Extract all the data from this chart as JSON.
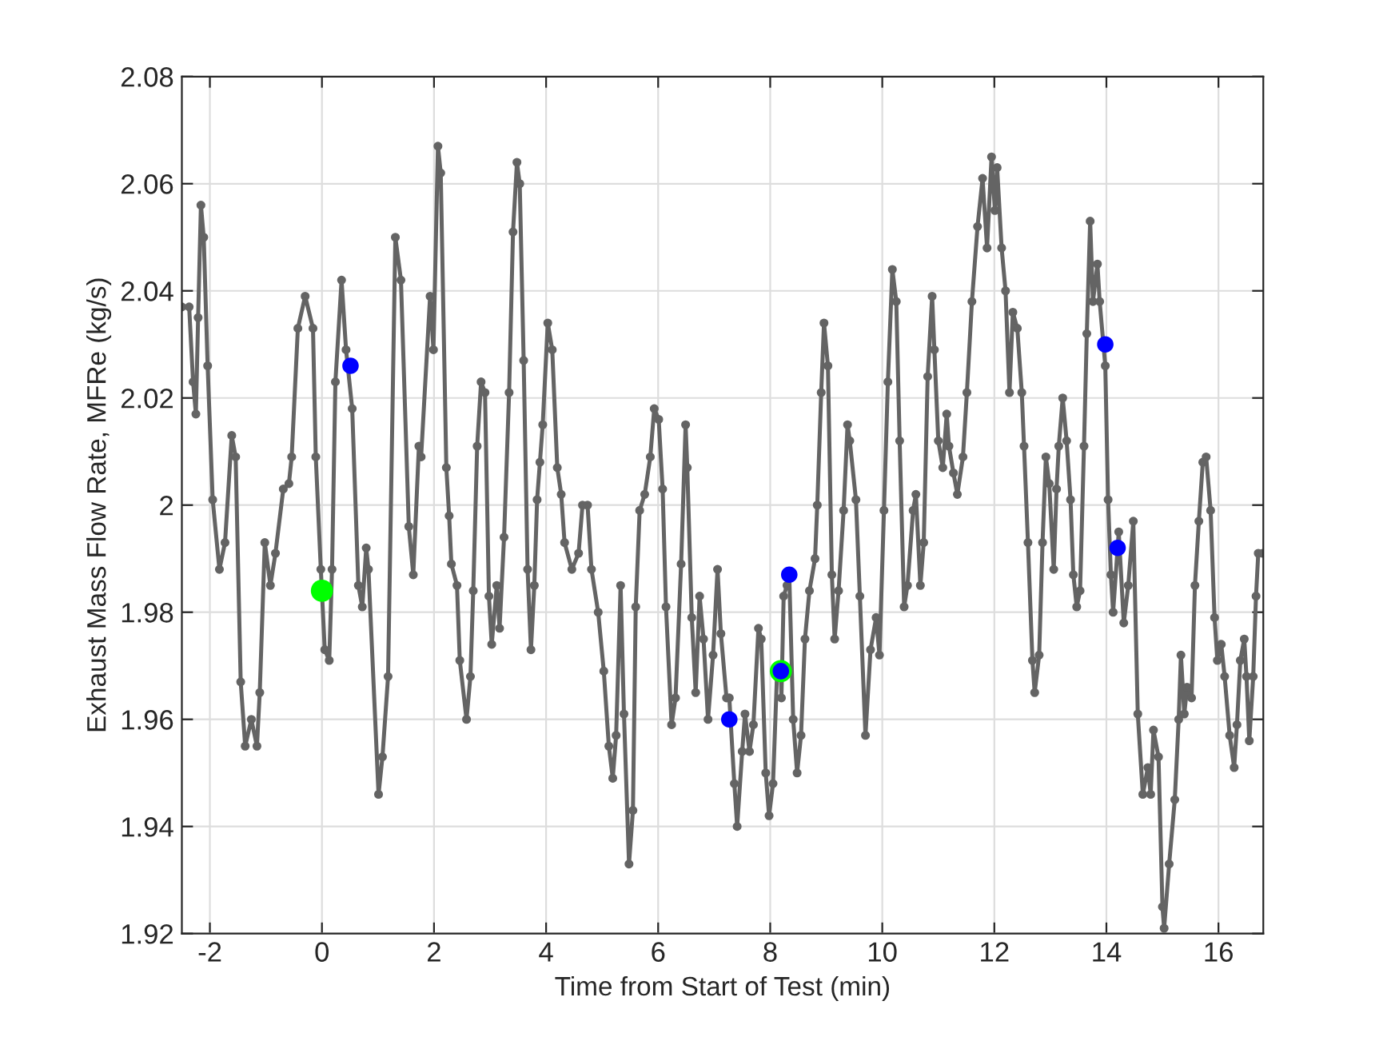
{
  "chart_data": {
    "type": "line",
    "xlabel": "Time from Start of Test (min)",
    "ylabel": "Exhaust Mass Flow Rate, MFRe (kg/s)",
    "xlim": [
      -2.5,
      16.8
    ],
    "ylim": [
      1.92,
      2.08
    ],
    "xticks": [
      -2,
      0,
      2,
      4,
      6,
      8,
      10,
      12,
      14,
      16
    ],
    "yticks": [
      1.92,
      1.94,
      1.96,
      1.98,
      2,
      2.02,
      2.04,
      2.06,
      2.08
    ],
    "grid": true,
    "legend": false,
    "series": [
      {
        "color": "#646464",
        "marker": "circle",
        "line_style": "solid",
        "x": [
          -2.5,
          -2.37,
          -2.3,
          -2.25,
          -2.21,
          -2.16,
          -2.11,
          -2.04,
          -1.95,
          -1.83,
          -1.73,
          -1.61,
          -1.54,
          -1.45,
          -1.37,
          -1.26,
          -1.16,
          -1.11,
          -1.02,
          -0.92,
          -0.83,
          -0.69,
          -0.59,
          -0.54,
          -0.43,
          -0.3,
          -0.16,
          -0.11,
          -0.02,
          0.05,
          0.13,
          0.18,
          0.24,
          0.35,
          0.43,
          0.54,
          0.65,
          0.72,
          0.79,
          0.83,
          1.01,
          1.08,
          1.18,
          1.31,
          1.41,
          1.55,
          1.63,
          1.73,
          1.77,
          1.93,
          1.99,
          2.07,
          2.12,
          2.22,
          2.27,
          2.31,
          2.41,
          2.46,
          2.58,
          2.65,
          2.7,
          2.77,
          2.84,
          2.91,
          2.98,
          3.03,
          3.12,
          3.17,
          3.25,
          3.34,
          3.41,
          3.48,
          3.53,
          3.6,
          3.67,
          3.73,
          3.79,
          3.84,
          3.89,
          3.94,
          4.03,
          4.11,
          4.2,
          4.27,
          4.33,
          4.46,
          4.58,
          4.65,
          4.74,
          4.81,
          4.93,
          5.03,
          5.12,
          5.19,
          5.25,
          5.33,
          5.39,
          5.48,
          5.55,
          5.6,
          5.67,
          5.76,
          5.86,
          5.93,
          6.01,
          6.08,
          6.14,
          6.24,
          6.31,
          6.41,
          6.49,
          6.52,
          6.6,
          6.67,
          6.74,
          6.81,
          6.89,
          6.98,
          7.06,
          7.12,
          7.22,
          7.27,
          7.36,
          7.41,
          7.5,
          7.55,
          7.63,
          7.7,
          7.79,
          7.84,
          7.92,
          7.98,
          8.05,
          8.12,
          8.19,
          8.2,
          8.24,
          8.3,
          8.34,
          8.41,
          8.48,
          8.55,
          8.62,
          8.7,
          8.8,
          8.84,
          8.91,
          8.96,
          9.03,
          9.1,
          9.15,
          9.22,
          9.31,
          9.38,
          9.42,
          9.53,
          9.6,
          9.7,
          9.79,
          9.89,
          9.95,
          10.03,
          10.1,
          10.18,
          10.25,
          10.31,
          10.39,
          10.45,
          10.55,
          10.6,
          10.68,
          10.74,
          10.81,
          10.89,
          10.93,
          11.0,
          11.08,
          11.15,
          11.19,
          11.27,
          11.34,
          11.44,
          11.51,
          11.6,
          11.7,
          11.79,
          11.87,
          11.95,
          12.01,
          12.05,
          12.13,
          12.2,
          12.27,
          12.33,
          12.41,
          12.49,
          12.53,
          12.6,
          12.68,
          12.72,
          12.8,
          12.86,
          12.92,
          12.98,
          13.06,
          13.11,
          13.15,
          13.22,
          13.29,
          13.36,
          13.41,
          13.47,
          13.53,
          13.6,
          13.65,
          13.71,
          13.76,
          13.84,
          13.88,
          13.98,
          14.03,
          14.08,
          14.12,
          14.2,
          14.22,
          14.31,
          14.39,
          14.48,
          14.56,
          14.65,
          14.74,
          14.79,
          14.84,
          14.93,
          15.0,
          15.03,
          15.12,
          15.22,
          15.29,
          15.33,
          15.39,
          15.44,
          15.52,
          15.58,
          15.65,
          15.72,
          15.78,
          15.86,
          15.93,
          15.98,
          16.05,
          16.11,
          16.2,
          16.28,
          16.33,
          16.39,
          16.46,
          16.5,
          16.55,
          16.62,
          16.67,
          16.71,
          16.79
        ],
        "values": [
          2.037,
          2.037,
          2.023,
          2.017,
          2.035,
          2.056,
          2.05,
          2.026,
          2.001,
          1.988,
          1.993,
          2.013,
          2.009,
          1.967,
          1.955,
          1.96,
          1.955,
          1.965,
          1.993,
          1.985,
          1.991,
          2.003,
          2.004,
          2.009,
          2.033,
          2.039,
          2.033,
          2.009,
          1.988,
          1.973,
          1.971,
          1.988,
          2.023,
          2.042,
          2.029,
          2.018,
          1.985,
          1.981,
          1.992,
          1.988,
          1.946,
          1.953,
          1.968,
          2.05,
          2.042,
          1.996,
          1.987,
          2.011,
          2.009,
          2.039,
          2.029,
          2.067,
          2.062,
          2.007,
          1.998,
          1.989,
          1.985,
          1.971,
          1.96,
          1.968,
          1.984,
          2.011,
          2.023,
          2.021,
          1.983,
          1.974,
          1.985,
          1.977,
          1.994,
          2.021,
          2.051,
          2.064,
          2.06,
          2.027,
          1.988,
          1.973,
          1.985,
          2.001,
          2.008,
          2.015,
          2.034,
          2.029,
          2.007,
          2.002,
          1.993,
          1.988,
          1.991,
          2.0,
          2.0,
          1.988,
          1.98,
          1.969,
          1.955,
          1.949,
          1.957,
          1.985,
          1.961,
          1.933,
          1.943,
          1.981,
          1.999,
          2.002,
          2.009,
          2.018,
          2.016,
          2.003,
          1.981,
          1.959,
          1.964,
          1.989,
          2.015,
          2.007,
          1.979,
          1.965,
          1.983,
          1.975,
          1.96,
          1.972,
          1.988,
          1.976,
          1.964,
          1.964,
          1.948,
          1.94,
          1.954,
          1.961,
          1.954,
          1.959,
          1.977,
          1.975,
          1.95,
          1.942,
          1.948,
          1.968,
          1.969,
          1.964,
          1.983,
          1.985,
          1.987,
          1.96,
          1.95,
          1.957,
          1.975,
          1.984,
          1.99,
          2.0,
          2.021,
          2.034,
          2.026,
          1.987,
          1.975,
          1.984,
          1.999,
          2.015,
          2.012,
          2.001,
          1.983,
          1.957,
          1.973,
          1.979,
          1.972,
          1.999,
          2.023,
          2.044,
          2.038,
          2.012,
          1.981,
          1.985,
          1.999,
          2.002,
          1.985,
          1.993,
          2.024,
          2.039,
          2.029,
          2.012,
          2.007,
          2.017,
          2.011,
          2.006,
          2.002,
          2.009,
          2.021,
          2.038,
          2.052,
          2.061,
          2.048,
          2.065,
          2.055,
          2.063,
          2.048,
          2.04,
          2.021,
          2.036,
          2.033,
          2.021,
          2.011,
          1.993,
          1.971,
          1.965,
          1.972,
          1.993,
          2.009,
          2.004,
          1.988,
          2.003,
          2.011,
          2.02,
          2.012,
          2.001,
          1.987,
          1.981,
          1.984,
          2.011,
          2.032,
          2.053,
          2.038,
          2.045,
          2.038,
          2.026,
          2.001,
          1.987,
          1.98,
          1.992,
          1.995,
          1.978,
          1.985,
          1.997,
          1.961,
          1.946,
          1.951,
          1.946,
          1.958,
          1.953,
          1.925,
          1.921,
          1.933,
          1.945,
          1.96,
          1.972,
          1.961,
          1.966,
          1.964,
          1.985,
          1.997,
          2.008,
          2.009,
          1.999,
          1.979,
          1.971,
          1.974,
          1.968,
          1.957,
          1.951,
          1.959,
          1.971,
          1.975,
          1.968,
          1.956,
          1.968,
          1.983,
          1.991,
          1.991
        ]
      },
      {
        "type": "scatter",
        "color": "#00ff00",
        "marker": "circle",
        "x": [
          0.0,
          8.19
        ],
        "values": [
          1.984,
          1.969
        ]
      },
      {
        "type": "scatter",
        "color": "#0000ff",
        "marker": "circle",
        "x": [
          0.51,
          7.27,
          8.19,
          8.34,
          13.98,
          14.2
        ],
        "values": [
          2.026,
          1.96,
          1.969,
          1.987,
          2.03,
          1.992
        ]
      }
    ]
  }
}
